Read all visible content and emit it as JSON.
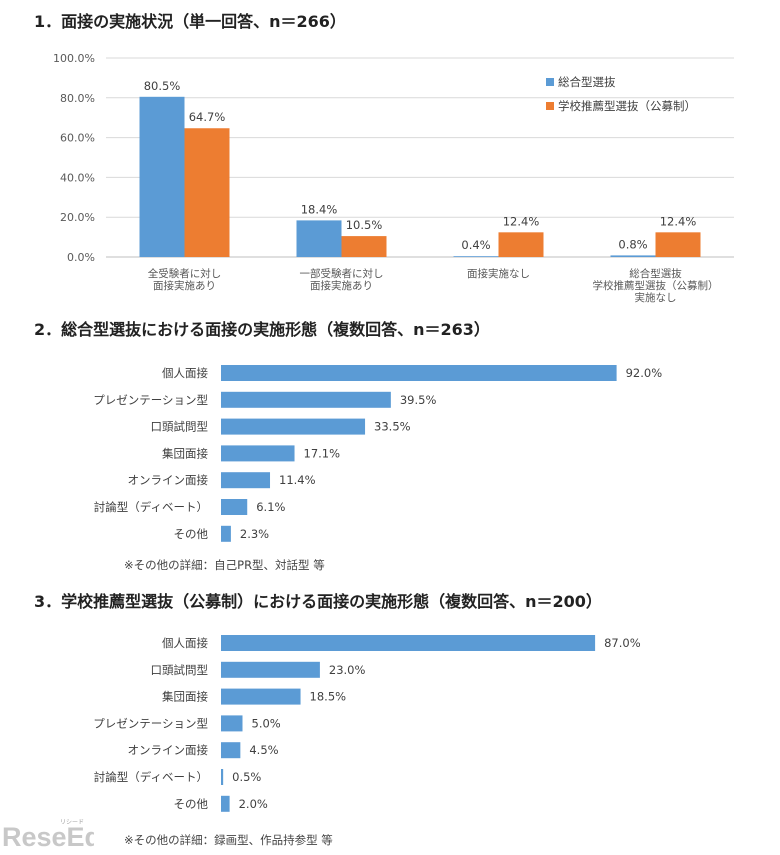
{
  "chart_data": [
    {
      "type": "bar",
      "title": "1．面接の実施状況（単一回答、n＝266）",
      "categories": [
        [
          "全受験者に対し",
          "面接実施あり"
        ],
        [
          "一部受験者に対し",
          "面接実施あり"
        ],
        [
          "面接実施なし"
        ],
        [
          "総合型選抜",
          "学校推薦型選抜（公募制）",
          "実施なし"
        ]
      ],
      "series": [
        {
          "name": "総合型選抜",
          "values": [
            80.5,
            18.4,
            0.4,
            0.8
          ],
          "labels": [
            "80.5%",
            "18.4%",
            "0.4%",
            "0.8%"
          ]
        },
        {
          "name": "学校推薦型選抜（公募制）",
          "values": [
            64.7,
            10.5,
            12.4,
            12.4
          ],
          "labels": [
            "64.7%",
            "10.5%",
            "12.4%",
            "12.4%"
          ]
        }
      ],
      "y_ticks": [
        "0.0%",
        "20.0%",
        "40.0%",
        "60.0%",
        "80.0%",
        "100.0%"
      ],
      "ylim": [
        0,
        100
      ],
      "grid": true,
      "legend": "top-right",
      "colors": [
        "#5b9bd5",
        "#ed7d31"
      ]
    },
    {
      "type": "bar",
      "orientation": "horizontal",
      "title": "2．総合型選抜における面接の実施形態（複数回答、n＝263）",
      "categories": [
        "個人面接",
        "プレゼンテーション型",
        "口頭試問型",
        "集団面接",
        "オンライン面接",
        "討論型（ディベート）",
        "その他"
      ],
      "values": [
        92.0,
        39.5,
        33.5,
        17.1,
        11.4,
        6.1,
        2.3
      ],
      "labels": [
        "92.0%",
        "39.5%",
        "33.5%",
        "17.1%",
        "11.4%",
        "6.1%",
        "2.3%"
      ],
      "xlim": [
        0,
        100
      ],
      "note": "※その他の詳細：自己PR型、対話型 等",
      "color": "#5b9bd5"
    },
    {
      "type": "bar",
      "orientation": "horizontal",
      "title": "3．学校推薦型選抜（公募制）における面接の実施形態（複数回答、n＝200）",
      "categories": [
        "個人面接",
        "口頭試問型",
        "集団面接",
        "プレゼンテーション型",
        "オンライン面接",
        "討論型（ディベート）",
        "その他"
      ],
      "values": [
        87.0,
        23.0,
        18.5,
        5.0,
        4.5,
        0.5,
        2.0
      ],
      "labels": [
        "87.0%",
        "23.0%",
        "18.5%",
        "5.0%",
        "4.5%",
        "0.5%",
        "2.0%"
      ],
      "xlim": [
        0,
        100
      ],
      "note": "※その他の詳細：録画型、作品持参型 等",
      "color": "#5b9bd5"
    }
  ],
  "logo": {
    "text": "ReseEd",
    "ruby": "リシード"
  }
}
